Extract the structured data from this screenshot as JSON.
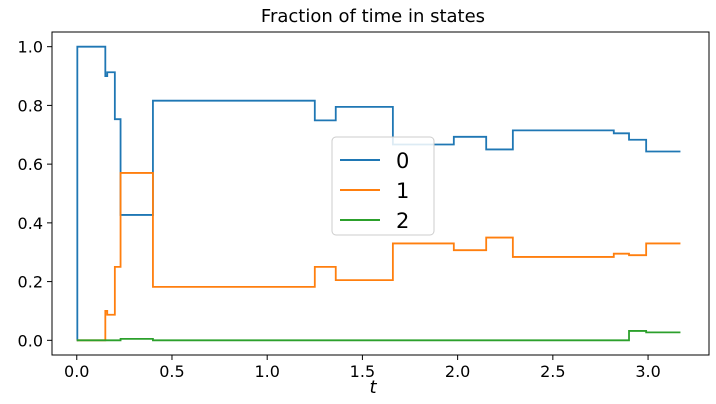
{
  "chart_data": {
    "type": "line",
    "step": true,
    "title": "Fraction of time in states",
    "xlabel": "t",
    "ylabel": "",
    "xlim": [
      -0.13,
      3.32
    ],
    "ylim": [
      -0.05,
      1.05
    ],
    "xticks": [
      0.0,
      0.5,
      1.0,
      1.5,
      2.0,
      2.5,
      3.0
    ],
    "xtick_labels": [
      "0.0",
      "0.5",
      "1.0",
      "1.5",
      "2.0",
      "2.5",
      "3.0"
    ],
    "yticks": [
      0.0,
      0.2,
      0.4,
      0.6,
      0.8,
      1.0
    ],
    "ytick_labels": [
      "0.0",
      "0.2",
      "0.4",
      "0.6",
      "0.8",
      "1.0"
    ],
    "grid": false,
    "legend_position": "center-right",
    "series": [
      {
        "name": "0",
        "color": "#1f77b4",
        "x": [
          0.0,
          0.003,
          0.15,
          0.16,
          0.18,
          0.2,
          0.23,
          0.4,
          1.25,
          1.36,
          1.66,
          1.98,
          2.15,
          2.29,
          2.82,
          2.88,
          2.9,
          2.99,
          3.17
        ],
        "y": [
          0.0,
          1.0,
          0.9,
          0.913,
          0.913,
          0.753,
          0.427,
          0.816,
          0.749,
          0.795,
          0.667,
          0.693,
          0.65,
          0.715,
          0.705,
          0.705,
          0.683,
          0.643,
          0.643
        ]
      },
      {
        "name": "1",
        "color": "#ff7f0e",
        "x": [
          0.0,
          0.15,
          0.16,
          0.18,
          0.2,
          0.23,
          0.4,
          1.25,
          1.36,
          1.66,
          1.98,
          2.15,
          2.29,
          2.82,
          2.88,
          2.9,
          2.99,
          3.17
        ],
        "y": [
          0.0,
          0.1,
          0.087,
          0.087,
          0.25,
          0.57,
          0.182,
          0.25,
          0.205,
          0.33,
          0.307,
          0.35,
          0.284,
          0.295,
          0.295,
          0.29,
          0.33,
          0.33
        ]
      },
      {
        "name": "2",
        "color": "#2ca02c",
        "x": [
          0.0,
          0.23,
          0.4,
          2.9,
          2.99,
          3.17
        ],
        "y": [
          0.0,
          0.005,
          0.0,
          0.032,
          0.027,
          0.027
        ]
      }
    ]
  }
}
